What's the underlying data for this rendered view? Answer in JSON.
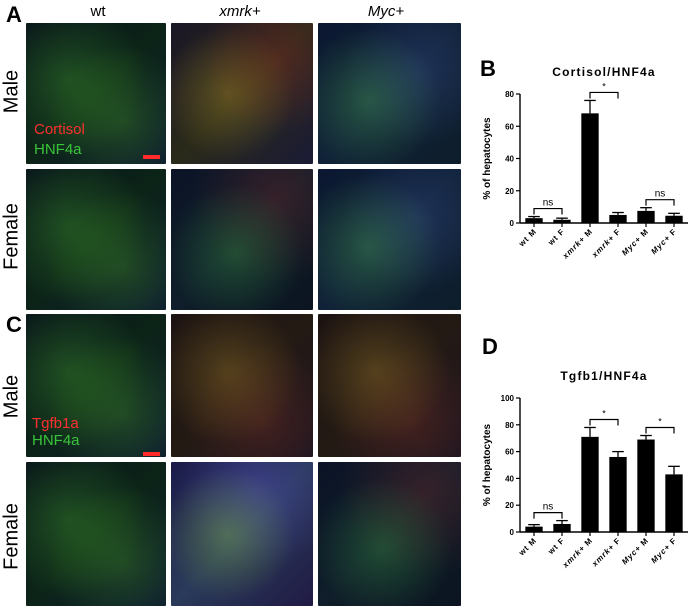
{
  "panels": {
    "a_letter": "A",
    "b_letter": "B",
    "c_letter": "C",
    "d_letter": "D"
  },
  "column_headers": [
    "wt",
    "xmrk+",
    "Myc+"
  ],
  "row_labels": {
    "top_male": "Male",
    "top_female": "Female",
    "bottom_male": "Male",
    "bottom_female": "Female"
  },
  "stain_labels": {
    "a_red": "Cortisol",
    "a_green": "HNF4a",
    "c_red": "Tgfb1a",
    "c_green": "HNF4a"
  },
  "colors": {
    "red_stain": "#ff3030",
    "green_stain": "#39c43a",
    "bar_fill": "#000000",
    "scalebar": "#ff2a2a"
  },
  "chart_data": [
    {
      "type": "bar",
      "title": "Cortisol/HNF4a",
      "ylabel": "% of hepatocytes",
      "ylim": [
        0,
        80
      ],
      "yticks": [
        0,
        20,
        40,
        60,
        80
      ],
      "categories": [
        "wt M",
        "wt F",
        "xmrk+ M",
        "xmrk+ F",
        "Myc+ M",
        "Myc+ F"
      ],
      "values": [
        3,
        2,
        68,
        5,
        7.5,
        4.5
      ],
      "errors": [
        1,
        1,
        8,
        1.5,
        2,
        1.5
      ],
      "annotations": [
        {
          "label": "ns",
          "from": 0,
          "to": 1
        },
        {
          "label": "*",
          "from": 2,
          "to": 3
        },
        {
          "label": "ns",
          "from": 4,
          "to": 5
        }
      ]
    },
    {
      "type": "bar",
      "title": "Tgfb1/HNF4a",
      "ylabel": "% of hepatocytes",
      "ylim": [
        0,
        100
      ],
      "yticks": [
        0,
        20,
        40,
        60,
        80,
        100
      ],
      "categories": [
        "wt M",
        "wt F",
        "xmrk+ M",
        "xmrk+ F",
        "Myc+ M",
        "Myc+ F"
      ],
      "values": [
        4,
        6,
        71,
        56,
        69,
        43
      ],
      "errors": [
        1.5,
        2.5,
        7,
        4,
        3,
        6
      ],
      "annotations": [
        {
          "label": "ns",
          "from": 0,
          "to": 1
        },
        {
          "label": "*",
          "from": 2,
          "to": 3
        },
        {
          "label": "*",
          "from": 4,
          "to": 5
        }
      ]
    }
  ]
}
